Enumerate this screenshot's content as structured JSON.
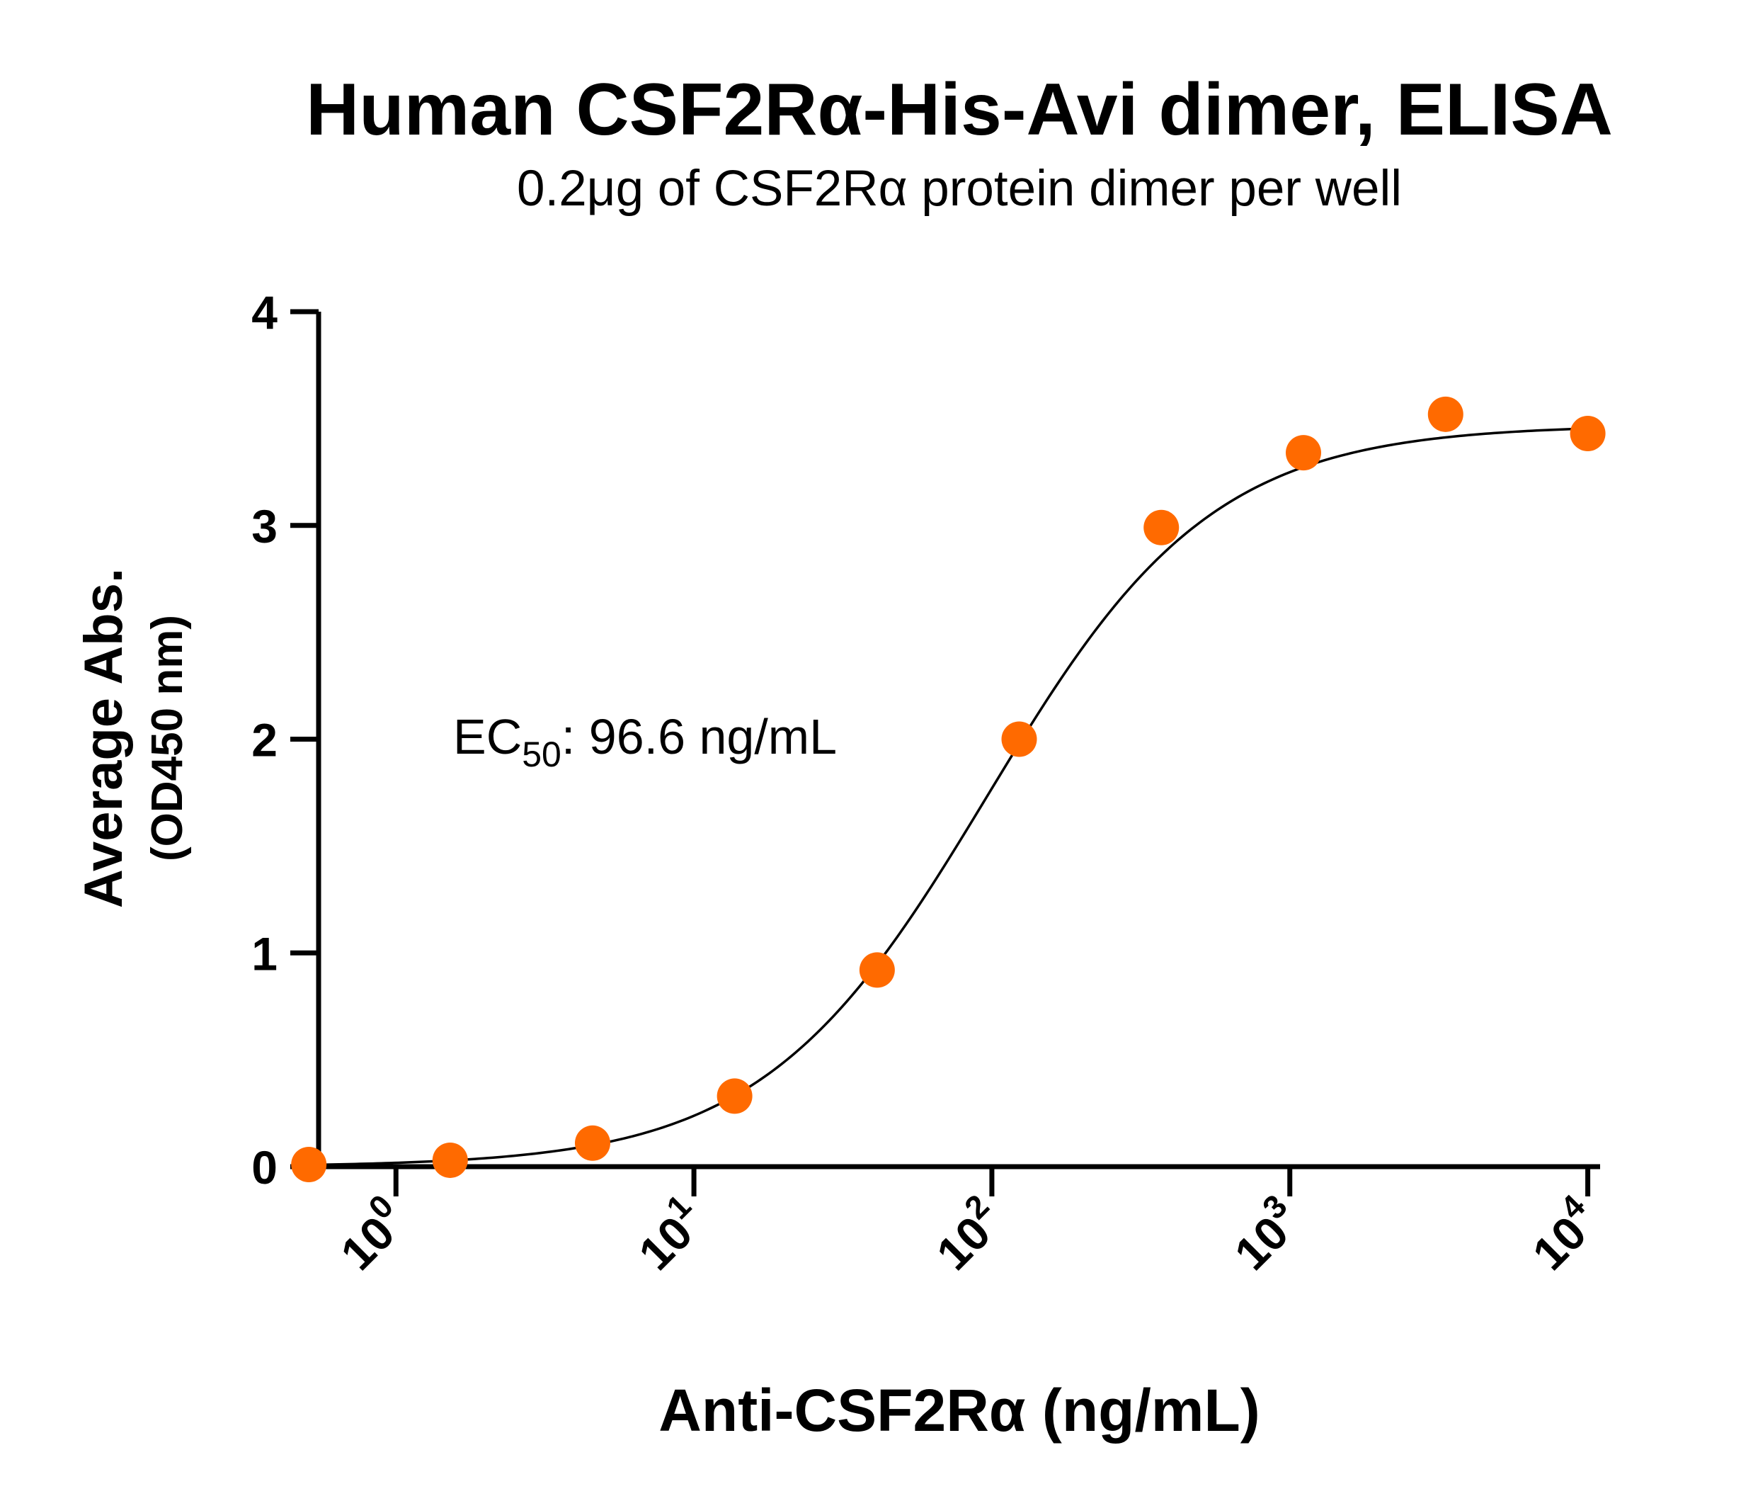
{
  "chart_data": {
    "type": "scatter",
    "title": "Human CSF2Rα-His-Avi dimer, ELISA",
    "subtitle": "0.2μg of CSF2Rα protein dimer per well",
    "xlabel": "Anti-CSF2Rα (ng/mL)",
    "ylabel": "Average Abs.",
    "ylabel_sub": "(OD450 nm)",
    "x_scale": "log10",
    "xlim": [
      0.55,
      11000
    ],
    "ylim": [
      0,
      4
    ],
    "x_ticks": [
      {
        "base": "10",
        "exp": "0",
        "value": 1
      },
      {
        "base": "10",
        "exp": "1",
        "value": 10
      },
      {
        "base": "10",
        "exp": "2",
        "value": 100
      },
      {
        "base": "10",
        "exp": "3",
        "value": 1000
      },
      {
        "base": "10",
        "exp": "4",
        "value": 10000
      }
    ],
    "y_ticks": [
      "0",
      "1",
      "2",
      "3",
      "4"
    ],
    "series": [
      {
        "x": [
          0.51,
          1.52,
          4.57,
          13.7,
          41.2,
          123.5,
          370.4,
          1111,
          3333,
          10000
        ],
        "y": [
          0.01,
          0.03,
          0.11,
          0.33,
          0.92,
          2.0,
          2.99,
          3.34,
          3.52,
          3.43
        ],
        "color": "#ff6a00"
      }
    ],
    "fit": {
      "model": "4PL",
      "bottom": 0.0,
      "top": 3.47,
      "ec50": 96.6,
      "hill": 1.15,
      "color": "#000000"
    },
    "annotation": {
      "prefix": "EC",
      "subscript": "50",
      "suffix": ": 96.6 ng/mL"
    },
    "grid": false,
    "legend": "none"
  }
}
